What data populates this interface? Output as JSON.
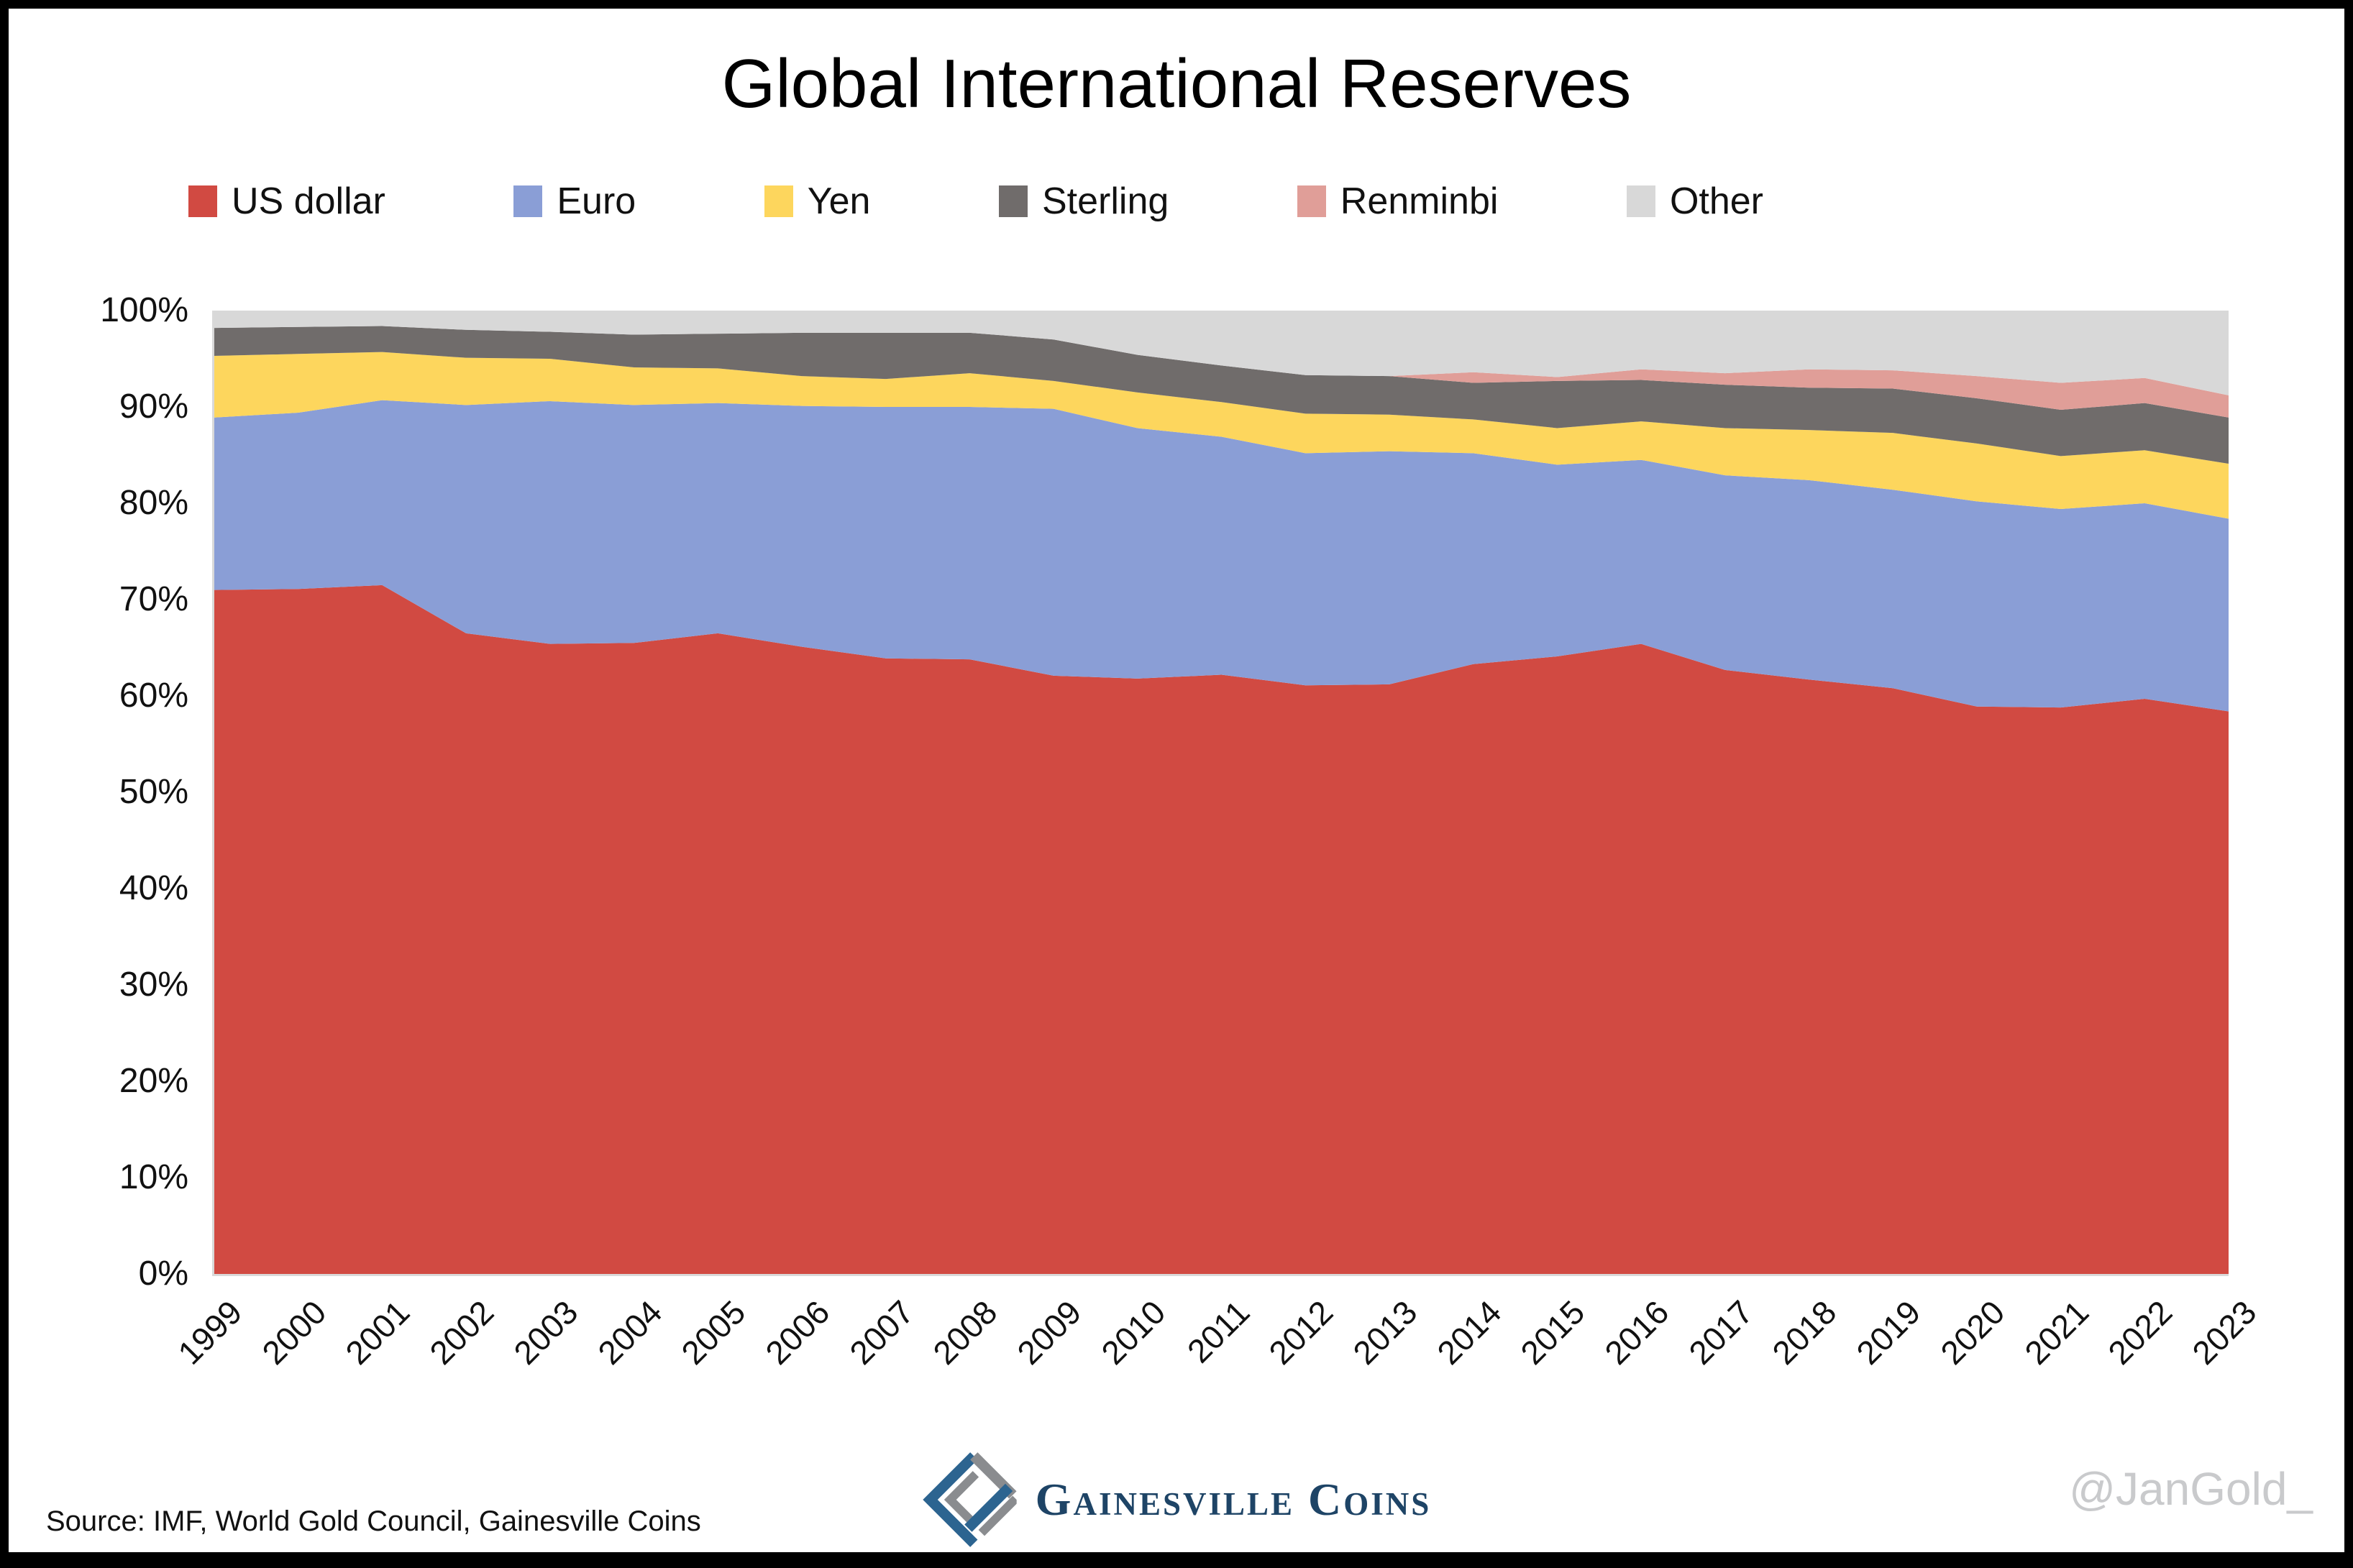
{
  "title": "Global International Reserves",
  "legend": {
    "items": [
      {
        "label": "US dollar",
        "color": "#D14A42"
      },
      {
        "label": "Euro",
        "color": "#8A9ED6"
      },
      {
        "label": "Yen",
        "color": "#FDD65D"
      },
      {
        "label": "Sterling",
        "color": "#706C6B"
      },
      {
        "label": "Renminbi",
        "color": "#E09E98"
      },
      {
        "label": "Other",
        "color": "#D8D8D8"
      }
    ]
  },
  "y_axis": {
    "ticks": [
      "100%",
      "90%",
      "80%",
      "70%",
      "60%",
      "50%",
      "40%",
      "30%",
      "20%",
      "10%",
      "0%"
    ]
  },
  "x_axis": {
    "labels": [
      "1999",
      "2000",
      "2001",
      "2002",
      "2003",
      "2004",
      "2005",
      "2006",
      "2007",
      "2008",
      "2009",
      "2010",
      "2011",
      "2012",
      "2013",
      "2014",
      "2015",
      "2016",
      "2017",
      "2018",
      "2019",
      "2020",
      "2021",
      "2022",
      "2023"
    ]
  },
  "footer": {
    "source_note": "Source: IMF, World Gold Council, Gainesville Coins",
    "brand": "Gainesville Coins",
    "watermark": "@JanGold_"
  },
  "chart_data": {
    "type": "area",
    "stacked": true,
    "percent_stacked": true,
    "title": "Global International Reserves",
    "x": [
      1999,
      2000,
      2001,
      2002,
      2003,
      2004,
      2005,
      2006,
      2007,
      2008,
      2009,
      2010,
      2011,
      2012,
      2013,
      2014,
      2015,
      2016,
      2017,
      2018,
      2019,
      2020,
      2021,
      2022,
      2023
    ],
    "series": [
      {
        "name": "US dollar",
        "color": "#D14A42",
        "values": [
          71.0,
          71.1,
          71.5,
          66.5,
          65.4,
          65.5,
          66.5,
          65.1,
          63.9,
          63.8,
          62.1,
          61.8,
          62.2,
          61.1,
          61.2,
          63.3,
          64.1,
          65.4,
          62.7,
          61.7,
          60.8,
          58.9,
          58.8,
          59.7,
          58.4
        ]
      },
      {
        "name": "Euro",
        "color": "#8A9ED6",
        "values": [
          17.9,
          18.3,
          19.2,
          23.7,
          25.2,
          24.7,
          23.9,
          25.0,
          26.1,
          26.2,
          27.7,
          26.0,
          24.7,
          24.1,
          24.2,
          21.9,
          19.9,
          19.1,
          20.2,
          20.7,
          20.6,
          21.3,
          20.6,
          20.3,
          20.0
        ]
      },
      {
        "name": "Yen",
        "color": "#FDD65D",
        "values": [
          6.4,
          6.1,
          5.0,
          4.9,
          4.4,
          3.9,
          3.6,
          3.1,
          2.9,
          3.5,
          2.9,
          3.7,
          3.6,
          4.1,
          3.8,
          3.5,
          3.8,
          4.0,
          4.9,
          5.2,
          5.9,
          6.0,
          5.5,
          5.5,
          5.7
        ]
      },
      {
        "name": "Sterling",
        "color": "#706C6B",
        "values": [
          2.9,
          2.8,
          2.7,
          2.9,
          2.8,
          3.4,
          3.6,
          4.5,
          4.8,
          4.2,
          4.3,
          3.9,
          3.8,
          4.0,
          4.0,
          3.8,
          4.9,
          4.3,
          4.5,
          4.4,
          4.6,
          4.7,
          4.8,
          4.9,
          4.8
        ]
      },
      {
        "name": "Renminbi",
        "color": "#E09E98",
        "values": [
          0,
          0,
          0,
          0,
          0,
          0,
          0,
          0,
          0,
          0,
          0,
          0,
          0,
          0,
          0,
          1.1,
          0.4,
          1.1,
          1.2,
          1.9,
          1.9,
          2.3,
          2.8,
          2.6,
          2.3
        ]
      },
      {
        "name": "Other",
        "color": "#D8D8D8",
        "values": [
          1.8,
          1.7,
          1.6,
          2.0,
          2.2,
          2.5,
          2.4,
          2.3,
          2.3,
          2.3,
          3.0,
          4.6,
          5.7,
          6.7,
          6.8,
          6.4,
          6.9,
          6.1,
          6.5,
          6.1,
          6.2,
          6.8,
          7.5,
          7.0,
          8.8
        ]
      }
    ],
    "ylim": [
      0,
      100
    ],
    "xlabel": "",
    "ylabel": "",
    "grid": false,
    "legend_position": "top"
  }
}
